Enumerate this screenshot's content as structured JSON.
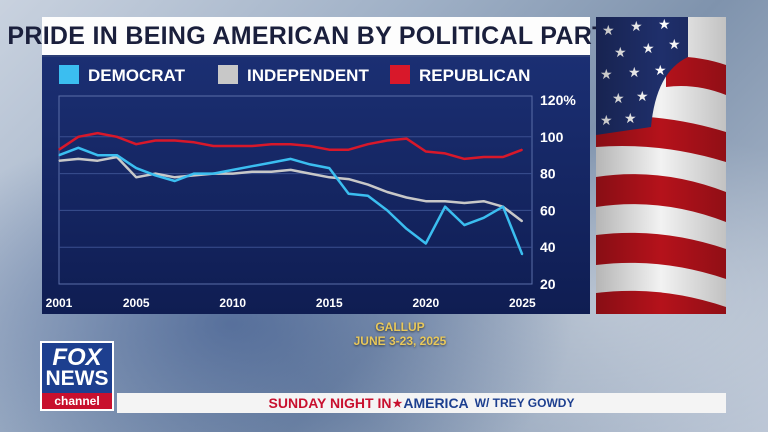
{
  "title": "PRIDE IN BEING AMERICAN BY POLITICAL PARTY",
  "source": {
    "line1": "GALLUP",
    "line2": "JUNE 3-23, 2025"
  },
  "network": {
    "logo_top": "FOX",
    "logo_mid": "NEWS",
    "logo_bottom": "channel"
  },
  "show": {
    "part1": "SUNDAY NIGHT IN",
    "part2": "AMERICA",
    "part3": "W/ TREY GOWDY"
  },
  "colors": {
    "democrat": "#3bbef0",
    "independent": "#c8c8c8",
    "republican": "#d8182a"
  },
  "chart_data": {
    "type": "line",
    "title": "PRIDE IN BEING AMERICAN BY POLITICAL PARTY",
    "x": [
      2001,
      2002,
      2003,
      2004,
      2005,
      2006,
      2007,
      2008,
      2009,
      2010,
      2011,
      2012,
      2013,
      2014,
      2015,
      2016,
      2017,
      2018,
      2019,
      2020,
      2021,
      2022,
      2023,
      2024,
      2025
    ],
    "series": [
      {
        "name": "DEMOCRAT",
        "values": [
          90,
          94,
          90,
          90,
          83,
          79,
          76,
          80,
          80,
          82,
          84,
          86,
          88,
          85,
          83,
          69,
          68,
          60,
          50,
          42,
          62,
          52,
          56,
          62,
          36
        ]
      },
      {
        "name": "INDEPENDENT",
        "values": [
          87,
          88,
          87,
          89,
          78,
          80,
          78,
          79,
          80,
          80,
          81,
          81,
          82,
          80,
          78,
          77,
          74,
          70,
          67,
          65,
          65,
          64,
          65,
          62,
          54
        ]
      },
      {
        "name": "REPUBLICAN",
        "values": [
          93,
          100,
          102,
          100,
          96,
          98,
          98,
          97,
          95,
          95,
          95,
          96,
          96,
          95,
          93,
          93,
          96,
          98,
          99,
          92,
          91,
          88,
          89,
          89,
          93
        ]
      }
    ],
    "x_ticks": [
      "2001",
      "2005",
      "2010",
      "2015",
      "2020",
      "2025"
    ],
    "y_ticks": [
      "20",
      "40",
      "60",
      "80",
      "100",
      "120%"
    ],
    "ylim": [
      20,
      120
    ],
    "xlim": [
      2001,
      2025.5
    ],
    "legend": "top-left",
    "grid": true
  }
}
